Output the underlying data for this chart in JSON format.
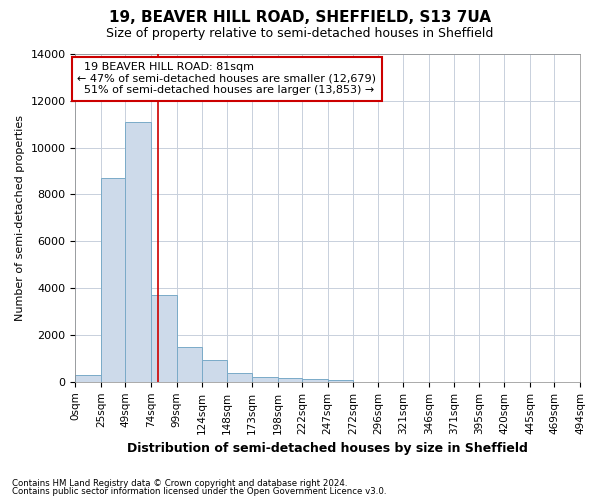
{
  "title": "19, BEAVER HILL ROAD, SHEFFIELD, S13 7UA",
  "subtitle": "Size of property relative to semi-detached houses in Sheffield",
  "xlabel": "Distribution of semi-detached houses by size in Sheffield",
  "ylabel": "Number of semi-detached properties",
  "footnote1": "Contains HM Land Registry data © Crown copyright and database right 2024.",
  "footnote2": "Contains public sector information licensed under the Open Government Licence v3.0.",
  "property_size": 81,
  "property_label": "19 BEAVER HILL ROAD: 81sqm",
  "smaller_pct": 47,
  "smaller_count": "12,679",
  "larger_pct": 51,
  "larger_count": "13,853",
  "bin_edges": [
    0,
    25,
    49,
    74,
    99,
    124,
    148,
    173,
    198,
    222,
    247,
    272,
    296,
    321,
    346,
    371,
    395,
    420,
    445,
    469,
    494
  ],
  "bar_heights": [
    300,
    8700,
    11100,
    3700,
    1500,
    950,
    380,
    220,
    150,
    100,
    80,
    0,
    0,
    0,
    0,
    0,
    0,
    0,
    0,
    0
  ],
  "bar_color": "#cddaea",
  "bar_edge_color": "#7aaac8",
  "vline_color": "#cc0000",
  "annotation_box_edgecolor": "#cc0000",
  "grid_color": "#c8d0dc",
  "background_color": "#ffffff",
  "ylim": [
    0,
    14000
  ],
  "yticks": [
    0,
    2000,
    4000,
    6000,
    8000,
    10000,
    12000,
    14000
  ]
}
